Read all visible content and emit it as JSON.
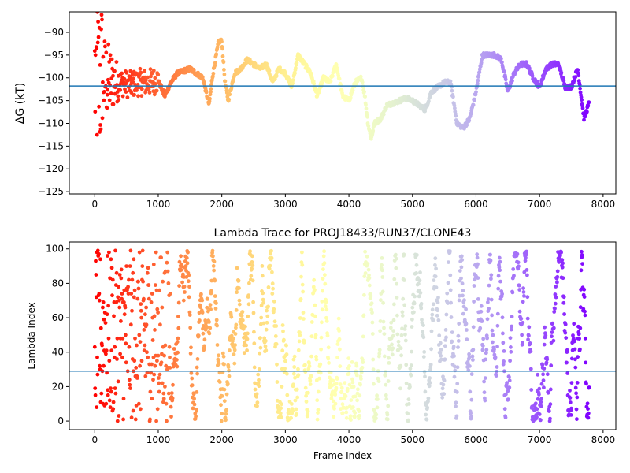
{
  "chart_data": [
    {
      "type": "scatter",
      "title": "",
      "xlabel": "",
      "ylabel": "ΔG (kT)",
      "xlim": [
        -400,
        8200
      ],
      "ylim": [
        -125.5,
        -85.5
      ],
      "x_ticks": [
        0,
        1000,
        2000,
        3000,
        4000,
        5000,
        6000,
        7000,
        8000
      ],
      "x_tick_labels": [
        "0",
        "1000",
        "2000",
        "3000",
        "4000",
        "5000",
        "6000",
        "7000",
        "8000"
      ],
      "y_ticks": [
        -90,
        -95,
        -100,
        -105,
        -110,
        -115,
        -120,
        -125
      ],
      "y_tick_labels": [
        "−90",
        "−95",
        "−100",
        "−105",
        "−110",
        "−115",
        "−120",
        "−125"
      ],
      "hline": -101.8,
      "hline_color": "#1f77b4",
      "colormap": "rainbow (red at early frames, violet at late frames)",
      "frame_max": 7780,
      "series": [
        {
          "x": [
            0,
            200,
            400,
            550,
            700,
            850,
            1000,
            1100,
            1200,
            1300,
            1400,
            1500,
            1600,
            1700,
            1800,
            1850,
            1900,
            1950,
            2000,
            2050,
            2100,
            2200,
            2300,
            2400,
            2500,
            2600,
            2700,
            2800,
            2900,
            3000,
            3100,
            3200,
            3300,
            3400,
            3500,
            3600,
            3700,
            3800,
            3900,
            4000,
            4100,
            4200,
            4250,
            4300,
            4350,
            4400,
            4500,
            4600,
            4700,
            4800,
            4900,
            5000,
            5100,
            5200,
            5300,
            5400,
            5500,
            5600,
            5700,
            5800,
            5900,
            6000,
            6100,
            6200,
            6300,
            6400,
            6500,
            6600,
            6700,
            6800,
            6900,
            7000,
            7100,
            7200,
            7300,
            7400,
            7500,
            7600,
            7700,
            7780
          ],
          "y": [
            -100,
            -100.5,
            -101,
            -101.5,
            -101,
            -101,
            -100.5,
            -104,
            -101,
            -99,
            -98.5,
            -98,
            -99,
            -100,
            -106,
            -100,
            -96,
            -92,
            -92,
            -101,
            -105,
            -99,
            -98,
            -96,
            -97,
            -98,
            -97,
            -101,
            -98,
            -99,
            -102,
            -95,
            -97,
            -99,
            -104,
            -100,
            -101,
            -97,
            -104,
            -105,
            -101,
            -100,
            -104,
            -110,
            -113.5,
            -110,
            -109,
            -106,
            -105.5,
            -105,
            -104.5,
            -105,
            -106,
            -107,
            -103,
            -102,
            -101,
            -101,
            -110,
            -111,
            -109,
            -103,
            -95,
            -95,
            -95,
            -96,
            -103,
            -99,
            -97,
            -97,
            -100,
            -102,
            -98,
            -97,
            -97,
            -102,
            -102,
            -98,
            -109,
            -105.5
          ]
        }
      ]
    },
    {
      "type": "scatter",
      "title": "Lambda Trace for PROJ18433/RUN37/CLONE43",
      "xlabel": "Frame Index",
      "ylabel": "Lambda Index",
      "xlim": [
        -400,
        8200
      ],
      "ylim": [
        -5,
        104
      ],
      "x_ticks": [
        0,
        1000,
        2000,
        3000,
        4000,
        5000,
        6000,
        7000,
        8000
      ],
      "x_tick_labels": [
        "0",
        "1000",
        "2000",
        "3000",
        "4000",
        "5000",
        "6000",
        "7000",
        "8000"
      ],
      "y_ticks": [
        0,
        20,
        40,
        60,
        80,
        100
      ],
      "y_tick_labels": [
        "0",
        "20",
        "40",
        "60",
        "80",
        "100"
      ],
      "hline": 29,
      "hline_color": "#1f77b4",
      "colormap": "rainbow (red at early frames, violet at late frames)",
      "frame_max": 7780,
      "lambda_range": [
        0,
        99
      ]
    }
  ]
}
